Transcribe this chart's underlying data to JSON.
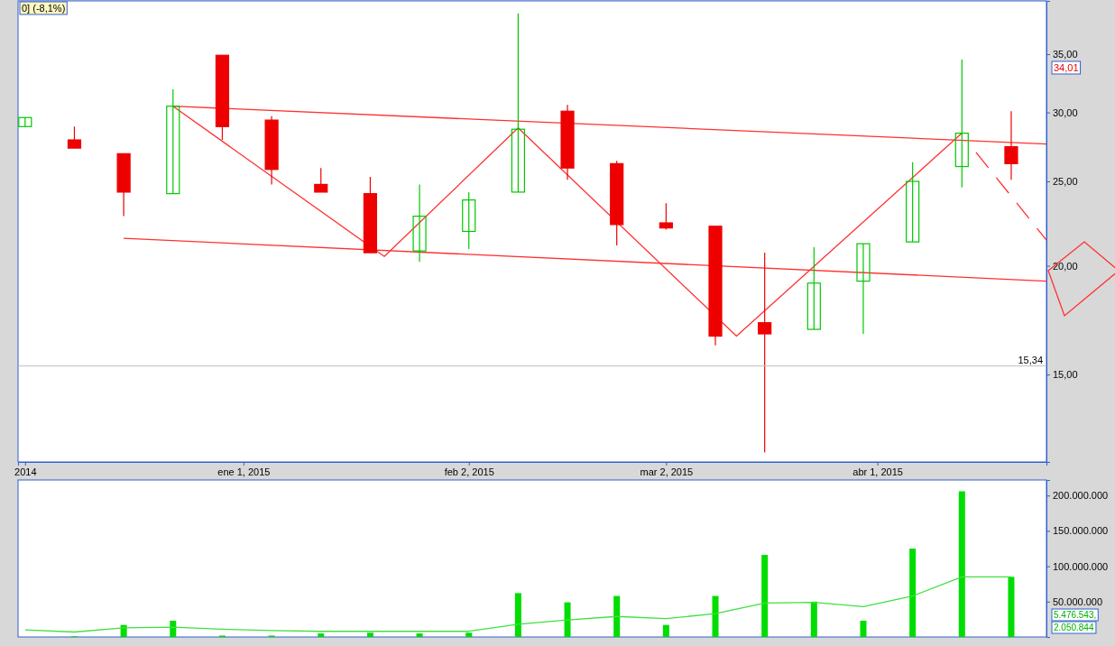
{
  "chart_data": [
    {
      "type": "candlestick",
      "log": "y",
      "grid": false,
      "x": [
        "2014-12-01",
        "2014-12-08",
        "2014-12-15",
        "2014-12-22",
        "2014-12-29",
        "2015-01-05",
        "2015-01-12",
        "2015-01-19",
        "2015-01-26",
        "2015-02-02",
        "2015-02-09",
        "2015-02-16",
        "2015-02-23",
        "2015-03-02",
        "2015-03-09",
        "2015-03-16",
        "2015-03-23",
        "2015-03-30",
        "2015-04-06",
        "2015-04-13",
        "2015-04-20"
      ],
      "ohlc": [
        [
          28.9,
          29.6,
          28.9,
          29.6
        ],
        [
          27.9,
          28.9,
          27.3,
          27.3
        ],
        [
          26.9,
          26.9,
          22.8,
          24.3
        ],
        [
          24.2,
          31.9,
          24.2,
          30.5
        ],
        [
          34.9,
          34.9,
          27.9,
          28.9
        ],
        [
          29.4,
          29.7,
          24.8,
          25.8
        ],
        [
          24.8,
          25.9,
          24.3,
          24.3
        ],
        [
          24.2,
          25.3,
          20.7,
          20.7
        ],
        [
          20.8,
          24.8,
          20.2,
          22.8
        ],
        [
          21.9,
          24.3,
          20.9,
          23.8
        ],
        [
          24.3,
          39.0,
          24.3,
          28.7
        ],
        [
          30.1,
          30.6,
          25.1,
          25.9
        ],
        [
          26.2,
          26.4,
          21.1,
          22.3
        ],
        [
          22.4,
          23.6,
          22.0,
          22.1
        ],
        [
          22.2,
          22.2,
          16.2,
          16.6
        ],
        [
          17.2,
          20.7,
          12.2,
          16.7
        ],
        [
          16.9,
          21.0,
          16.9,
          19.1
        ],
        [
          19.2,
          21.2,
          16.7,
          21.2
        ],
        [
          21.3,
          26.3,
          21.3,
          25.0
        ],
        [
          26.0,
          34.5,
          24.6,
          28.4
        ],
        [
          27.4,
          30.1,
          25.1,
          26.2
        ]
      ],
      "colors": [
        "#00c800",
        "#ee0000",
        "#ee0000",
        "#00c800",
        "#ee0000",
        "#ee0000",
        "#ee0000",
        "#ee0000",
        "#00c800",
        "#00c800",
        "#00c800",
        "#ee0000",
        "#ee0000",
        "#ee0000",
        "#ee0000",
        "#ee0000",
        "#00c800",
        "#00c800",
        "#00c800",
        "#00c800",
        "#ee0000"
      ],
      "series": [
        {
          "type": "line",
          "color": "#ff3030",
          "x": [
            "2014-12-22",
            "2015-01-21",
            "2015-02-09",
            "2015-03-12",
            "2015-04-13"
          ],
          "values": [
            30.5,
            20.5,
            28.8,
            16.6,
            28.4
          ]
        },
        {
          "type": "line",
          "color": "#ff3030",
          "x": [
            "2014-12-22",
            "2015-04-25"
          ],
          "values": [
            30.5,
            27.6
          ]
        },
        {
          "type": "line",
          "color": "#ff3030",
          "x": [
            "2014-12-15",
            "2015-04-25"
          ],
          "values": [
            21.5,
            19.2
          ]
        },
        {
          "type": "line",
          "color": "#ff3030",
          "line_style": "dashed",
          "x": [
            "2015-04-15",
            "2015-04-25"
          ],
          "values": [
            27.0,
            21.4
          ]
        }
      ],
      "xlim": [
        "2014-11-30",
        "2015-04-25"
      ],
      "xticks": [
        {
          "value": "2014-12-01",
          "label": "2014"
        },
        {
          "value": "2015-01-01",
          "label": "ene 1, 2015"
        },
        {
          "value": "2015-02-02",
          "label": "feb 2, 2015"
        },
        {
          "value": "2015-03-02",
          "label": "mar 2, 2015"
        },
        {
          "value": "2015-04-01",
          "label": "abr 1, 2015"
        }
      ],
      "ylim": [
        11.9,
        40.3
      ],
      "yticks": [
        {
          "value": 15,
          "label": "15,00"
        },
        {
          "value": 20,
          "label": "20,00"
        },
        {
          "value": 25,
          "label": "25,00"
        },
        {
          "value": 30,
          "label": "30,00"
        },
        {
          "value": 35,
          "label": "35,00"
        }
      ],
      "ref_lines": [
        {
          "axis": "y",
          "value": 15.34,
          "label": "15,34",
          "color": "#c0c0c0"
        }
      ],
      "annotations": [
        "0] (-8,1%)",
        "34,01"
      ]
    },
    {
      "type": "bar",
      "grid": false,
      "tick_labels": "y",
      "x": [
        "2014-12-01",
        "2014-12-08",
        "2014-12-15",
        "2014-12-22",
        "2014-12-29",
        "2015-01-05",
        "2015-01-12",
        "2015-01-19",
        "2015-01-26",
        "2015-02-02",
        "2015-02-09",
        "2015-02-16",
        "2015-02-23",
        "2015-03-02",
        "2015-03-09",
        "2015-03-16",
        "2015-03-23",
        "2015-03-30",
        "2015-04-06",
        "2015-04-13",
        "2015-04-20"
      ],
      "series": [
        {
          "type": "bar",
          "color": "#00dd00",
          "values": [
            null,
            1000000,
            17000000,
            23000000,
            2000000,
            2000000,
            5000000,
            6000000,
            5000000,
            6000000,
            62000000,
            49000000,
            58000000,
            17000000,
            58000000,
            116000000,
            50000000,
            23000000,
            125000000,
            206000000,
            85000000
          ]
        },
        {
          "type": "line",
          "color": "#40e040",
          "values": [
            10000000,
            7000000,
            13000000,
            14000000,
            11000000,
            9000000,
            8000000,
            8000000,
            8000000,
            8000000,
            18000000,
            24000000,
            29000000,
            26000000,
            33000000,
            48000000,
            49000000,
            43000000,
            58000000,
            85000000,
            85000000
          ]
        }
      ],
      "xlim": [
        "2014-11-30",
        "2015-04-25"
      ],
      "ylim": [
        0,
        222000000
      ],
      "yticks": [
        {
          "value": 50000000,
          "label": "50.000.000"
        },
        {
          "value": 100000000,
          "label": "100.000.000"
        },
        {
          "value": 150000000,
          "label": "150.000.000"
        },
        {
          "value": 200000000,
          "label": "200.000.000"
        }
      ],
      "annotations": [
        "5.476.543,",
        "2.050.844"
      ]
    }
  ]
}
